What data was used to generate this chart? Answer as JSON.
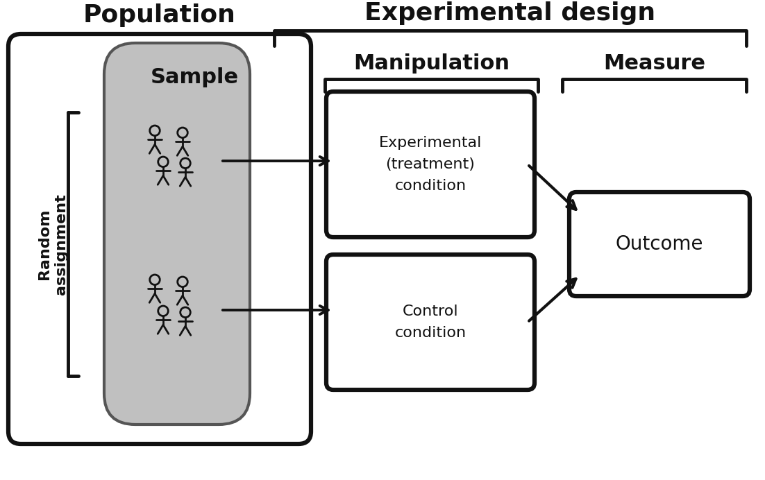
{
  "bg_color": "#ffffff",
  "box_color": "#111111",
  "gray_color": "#c0c0c0",
  "labels": {
    "population": "Population",
    "sample": "Sample",
    "experimental_design": "Experimental design",
    "manipulation": "Manipulation",
    "measure": "Measure",
    "random_assignment": "Random\nassignment",
    "exp_condition": "Experimental\n(treatment)\ncondition",
    "control_condition": "Control\ncondition",
    "outcome": "Outcome"
  },
  "figsize": [
    11.02,
    6.92
  ],
  "dpi": 100
}
